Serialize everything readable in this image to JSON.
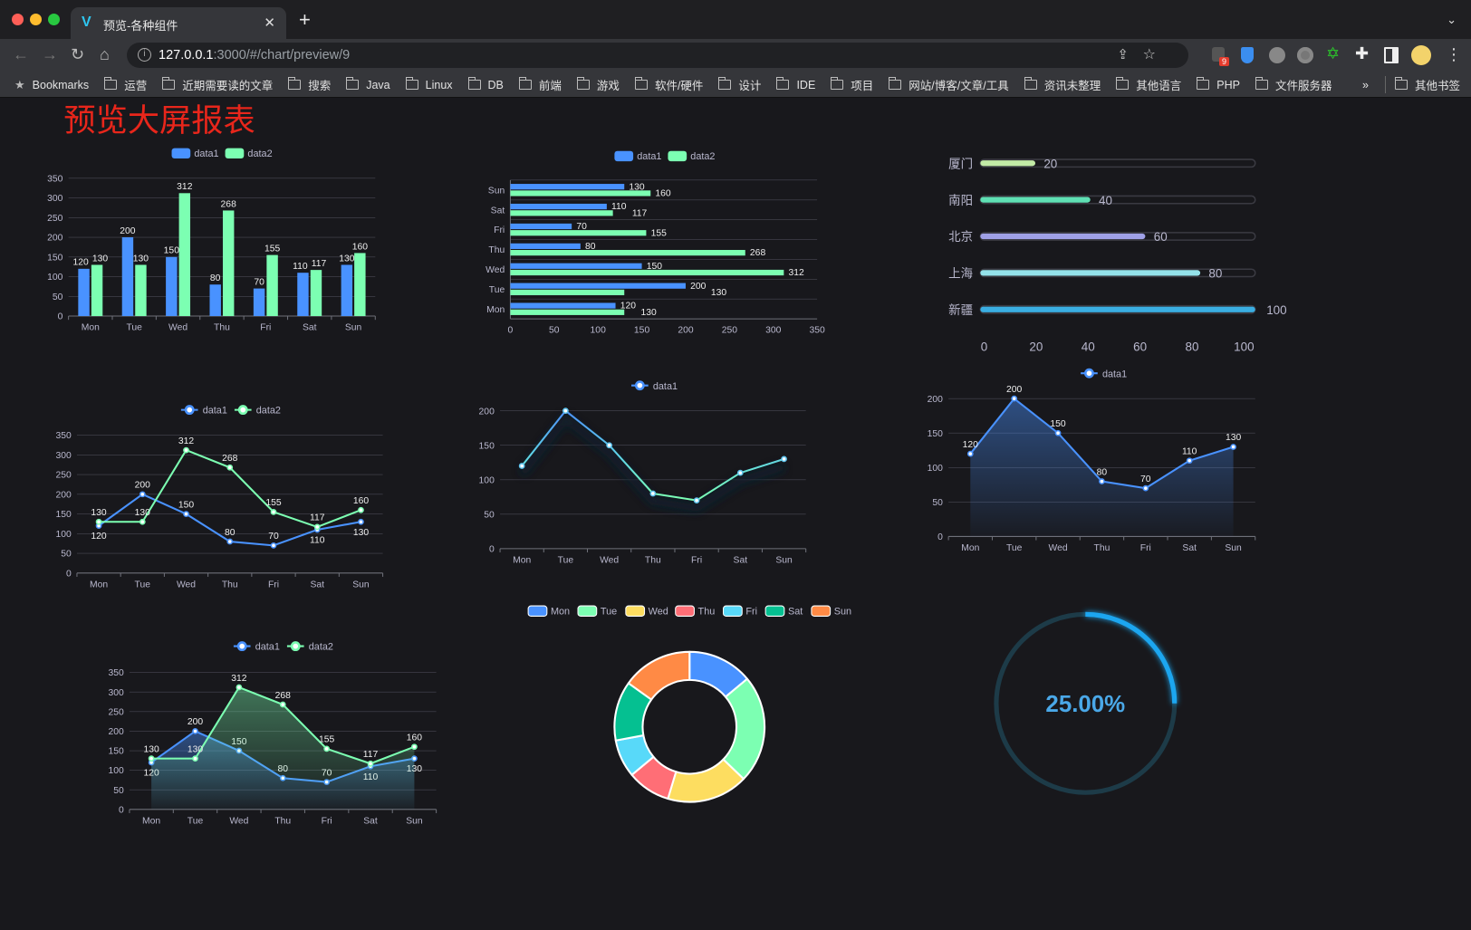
{
  "browser": {
    "tab_title": "预览-各种组件",
    "url_host": "127.0.0.1",
    "url_rest": ":3000/#/chart/preview/9",
    "extension_badge": "9",
    "bookmarks": [
      "Bookmarks",
      "运营",
      "近期需要读的文章",
      "搜索",
      "Java",
      "Linux",
      "DB",
      "前端",
      "游戏",
      "软件/硬件",
      "设计",
      "IDE",
      "项目",
      "网站/博客/文章/工具",
      "资讯未整理",
      "其他语言",
      "PHP",
      "文件服务器"
    ],
    "bookmarks_overflow": "»",
    "other_bookmarks": "其他书签"
  },
  "page": {
    "title": "预览大屏报表"
  },
  "colors": {
    "title": "#e8261b",
    "data1": "#4992ff",
    "data2": "#7cffb2",
    "axis_text": "#b9b8ce",
    "grid": "#484753",
    "background": "#18181c",
    "gauge": "#1ca6f0"
  },
  "chart_data": [
    {
      "type": "bar",
      "legend": [
        "data1",
        "data2"
      ],
      "categories": [
        "Mon",
        "Tue",
        "Wed",
        "Thu",
        "Fri",
        "Sat",
        "Sun"
      ],
      "series": [
        {
          "name": "data1",
          "values": [
            120,
            200,
            150,
            80,
            70,
            110,
            130
          ]
        },
        {
          "name": "data2",
          "values": [
            130,
            130,
            312,
            268,
            155,
            117,
            160
          ]
        }
      ],
      "ylim": [
        0,
        350
      ],
      "y_ticks": [
        0,
        50,
        100,
        150,
        200,
        250,
        300,
        350
      ],
      "data_labels": true
    },
    {
      "type": "bar",
      "orientation": "horizontal",
      "legend": [
        "data1",
        "data2"
      ],
      "categories": [
        "Mon",
        "Tue",
        "Wed",
        "Thu",
        "Fri",
        "Sat",
        "Sun"
      ],
      "series": [
        {
          "name": "data1",
          "values": [
            120,
            200,
            150,
            80,
            70,
            110,
            130
          ]
        },
        {
          "name": "data2",
          "values": [
            130,
            130,
            312,
            268,
            155,
            117,
            160
          ]
        }
      ],
      "xlim": [
        0,
        350
      ],
      "x_ticks": [
        0,
        50,
        100,
        150,
        200,
        250,
        300,
        350
      ],
      "data_labels": true
    },
    {
      "type": "bar",
      "orientation": "horizontal",
      "style": "progress",
      "categories": [
        "厦门",
        "南阳",
        "北京",
        "上海",
        "新疆"
      ],
      "values": [
        20,
        40,
        60,
        80,
        100
      ],
      "bar_colors": [
        "#c3eba6",
        "#5fe0b4",
        "#9fa0e6",
        "#94e2ea",
        "#3aaee2"
      ],
      "xlim": [
        0,
        100
      ],
      "x_ticks": [
        0,
        20,
        40,
        60,
        80,
        100
      ],
      "data_labels": true
    },
    {
      "type": "line",
      "legend": [
        "data1",
        "data2"
      ],
      "categories": [
        "Mon",
        "Tue",
        "Wed",
        "Thu",
        "Fri",
        "Sat",
        "Sun"
      ],
      "series": [
        {
          "name": "data1",
          "values": [
            120,
            200,
            150,
            80,
            70,
            110,
            130
          ]
        },
        {
          "name": "data2",
          "values": [
            130,
            130,
            312,
            268,
            155,
            117,
            160
          ]
        }
      ],
      "ylim": [
        0,
        350
      ],
      "y_ticks": [
        0,
        50,
        100,
        150,
        200,
        250,
        300,
        350
      ],
      "data_labels": true
    },
    {
      "type": "line",
      "legend": [
        "data1"
      ],
      "categories": [
        "Mon",
        "Tue",
        "Wed",
        "Thu",
        "Fri",
        "Sat",
        "Sun"
      ],
      "series": [
        {
          "name": "data1",
          "values": [
            120,
            200,
            150,
            80,
            70,
            110,
            130
          ]
        }
      ],
      "ylim": [
        0,
        200
      ],
      "y_ticks": [
        0,
        50,
        100,
        150,
        200
      ],
      "data_labels": false,
      "line_color": "gradient blue-green"
    },
    {
      "type": "area",
      "legend": [
        "data1"
      ],
      "categories": [
        "Mon",
        "Tue",
        "Wed",
        "Thu",
        "Fri",
        "Sat",
        "Sun"
      ],
      "series": [
        {
          "name": "data1",
          "values": [
            120,
            200,
            150,
            80,
            70,
            110,
            130
          ]
        }
      ],
      "ylim": [
        0,
        200
      ],
      "y_ticks": [
        0,
        50,
        100,
        150,
        200
      ],
      "data_labels": true
    },
    {
      "type": "area",
      "legend": [
        "data1",
        "data2"
      ],
      "categories": [
        "Mon",
        "Tue",
        "Wed",
        "Thu",
        "Fri",
        "Sat",
        "Sun"
      ],
      "series": [
        {
          "name": "data1",
          "values": [
            120,
            200,
            150,
            80,
            70,
            110,
            130
          ]
        },
        {
          "name": "data2",
          "values": [
            130,
            130,
            312,
            268,
            155,
            117,
            160
          ]
        }
      ],
      "ylim": [
        0,
        350
      ],
      "y_ticks": [
        0,
        50,
        100,
        150,
        200,
        250,
        300,
        350
      ],
      "data_labels": true
    },
    {
      "type": "pie",
      "style": "donut",
      "legend": [
        "Mon",
        "Tue",
        "Wed",
        "Thu",
        "Fri",
        "Sat",
        "Sun"
      ],
      "categories": [
        "Mon",
        "Tue",
        "Wed",
        "Thu",
        "Fri",
        "Sat",
        "Sun"
      ],
      "values": [
        120,
        200,
        150,
        80,
        70,
        110,
        130
      ],
      "slice_colors": [
        "#4992ff",
        "#7cffb2",
        "#fddd60",
        "#ff6e76",
        "#58d9f9",
        "#05c091",
        "#ff8a45"
      ]
    },
    {
      "type": "gauge",
      "value": 25,
      "max": 100,
      "label": "25.00%"
    }
  ]
}
